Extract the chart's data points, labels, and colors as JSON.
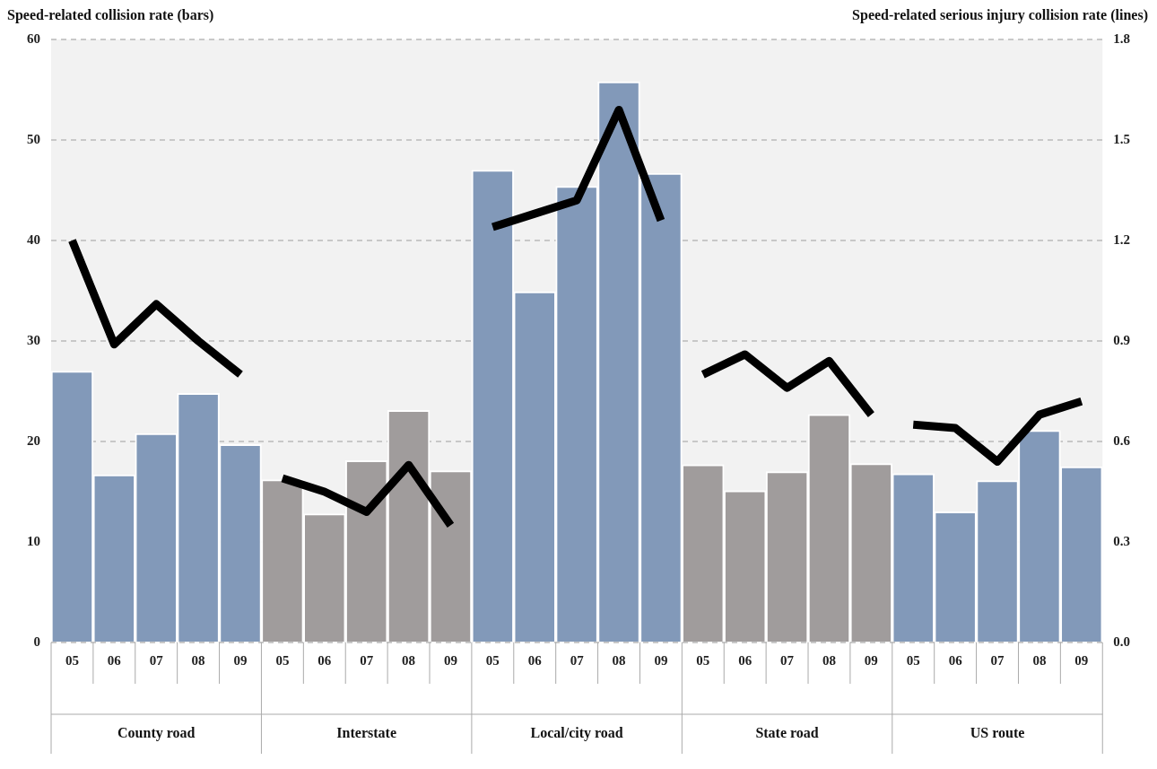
{
  "chart_data": {
    "type": "bar",
    "ylabel": "Speed-related collision rate (bars)",
    "y2label": "Speed-related serious injury collision rate (lines)",
    "categories": [
      "05",
      "06",
      "07",
      "08",
      "09",
      "05",
      "06",
      "07",
      "08",
      "09",
      "05",
      "06",
      "07",
      "08",
      "09",
      "05",
      "06",
      "07",
      "08",
      "09",
      "05",
      "06",
      "07",
      "08",
      "09"
    ],
    "series": [
      {
        "colors": [
          "#8299b9",
          "#8299b9",
          "#8299b9",
          "#8299b9",
          "#8299b9",
          "#a09c9c",
          "#a09c9c",
          "#a09c9c",
          "#a09c9c",
          "#a09c9c",
          "#8299b9",
          "#8299b9",
          "#8299b9",
          "#8299b9",
          "#8299b9",
          "#a09c9c",
          "#a09c9c",
          "#a09c9c",
          "#a09c9c",
          "#a09c9c",
          "#8299b9",
          "#8299b9",
          "#8299b9",
          "#8299b9",
          "#8299b9"
        ],
        "values": [
          27,
          16.7,
          20.8,
          24.8,
          19.7,
          16.2,
          12.8,
          18.1,
          23.1,
          17.1,
          47,
          34.9,
          45.4,
          55.8,
          46.7,
          17.7,
          15.1,
          17,
          22.7,
          17.8,
          16.8,
          13,
          16.1,
          21.1,
          17.5
        ]
      },
      {
        "type": "line",
        "axis": "y2",
        "color": "#000000",
        "values": [
          1.2,
          0.89,
          1.01,
          0.9,
          0.8,
          null,
          null,
          null,
          null,
          null,
          null,
          null,
          null,
          null,
          null,
          null,
          null,
          null,
          null,
          null,
          null,
          null,
          null,
          null,
          null
        ]
      },
      {
        "type": "line",
        "axis": "y2",
        "color": "#000000",
        "values": [
          null,
          null,
          null,
          null,
          null,
          0.49,
          0.45,
          0.39,
          0.53,
          0.35,
          null,
          null,
          null,
          null,
          null,
          null,
          null,
          null,
          null,
          null,
          null,
          null,
          null,
          null,
          null
        ]
      },
      {
        "type": "line",
        "axis": "y2",
        "color": "#000000",
        "values": [
          null,
          null,
          null,
          null,
          null,
          null,
          null,
          null,
          null,
          null,
          1.24,
          1.28,
          1.32,
          1.59,
          1.26,
          null,
          null,
          null,
          null,
          null,
          null,
          null,
          null,
          null,
          null
        ]
      },
      {
        "type": "line",
        "axis": "y2",
        "color": "#000000",
        "values": [
          null,
          null,
          null,
          null,
          null,
          null,
          null,
          null,
          null,
          null,
          null,
          null,
          null,
          null,
          null,
          0.8,
          0.86,
          0.76,
          0.84,
          0.68,
          null,
          null,
          null,
          null,
          null
        ]
      },
      {
        "type": "line",
        "axis": "y2",
        "color": "#000000",
        "values": [
          null,
          null,
          null,
          null,
          null,
          null,
          null,
          null,
          null,
          null,
          null,
          null,
          null,
          null,
          null,
          null,
          null,
          null,
          null,
          null,
          0.65,
          0.64,
          0.54,
          0.68,
          0.72
        ]
      }
    ],
    "annotations": [
      "County road",
      "Interstate",
      "Local/city road",
      "State road",
      "US route"
    ],
    "ylim": [
      0,
      60
    ],
    "yticks": [
      0,
      10,
      20,
      30,
      40,
      50,
      60
    ],
    "y2lim": [
      0,
      1.8
    ],
    "y2ticks": [
      {
        "value": 0,
        "label": "0.0"
      },
      0.3,
      0.6,
      0.9,
      1.2,
      1.5,
      1.8
    ],
    "grid": "y",
    "legend": false
  }
}
